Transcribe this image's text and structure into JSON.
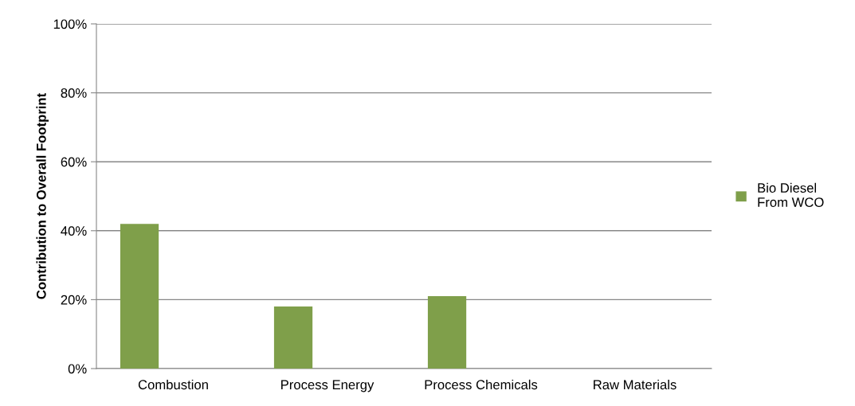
{
  "chart_data": {
    "type": "bar",
    "ylabel": "Contribution to Overall Footprint",
    "categories": [
      "Combustion",
      "Process Energy",
      "Process Chemicals",
      "Raw Materials"
    ],
    "series": [
      {
        "name": "Bio Diesel From WCO",
        "color": "#7f9f4a",
        "values": [
          42,
          18,
          21,
          0
        ]
      }
    ],
    "ylim": [
      0,
      100
    ],
    "yticks": [
      {
        "value": 0,
        "label": "0%"
      },
      {
        "value": 20,
        "label": "20%"
      },
      {
        "value": 40,
        "label": "40%"
      },
      {
        "value": 60,
        "label": "60%"
      },
      {
        "value": 80,
        "label": "80%"
      },
      {
        "value": 100,
        "label": "100%"
      }
    ],
    "grid": "y",
    "legend": "right"
  }
}
